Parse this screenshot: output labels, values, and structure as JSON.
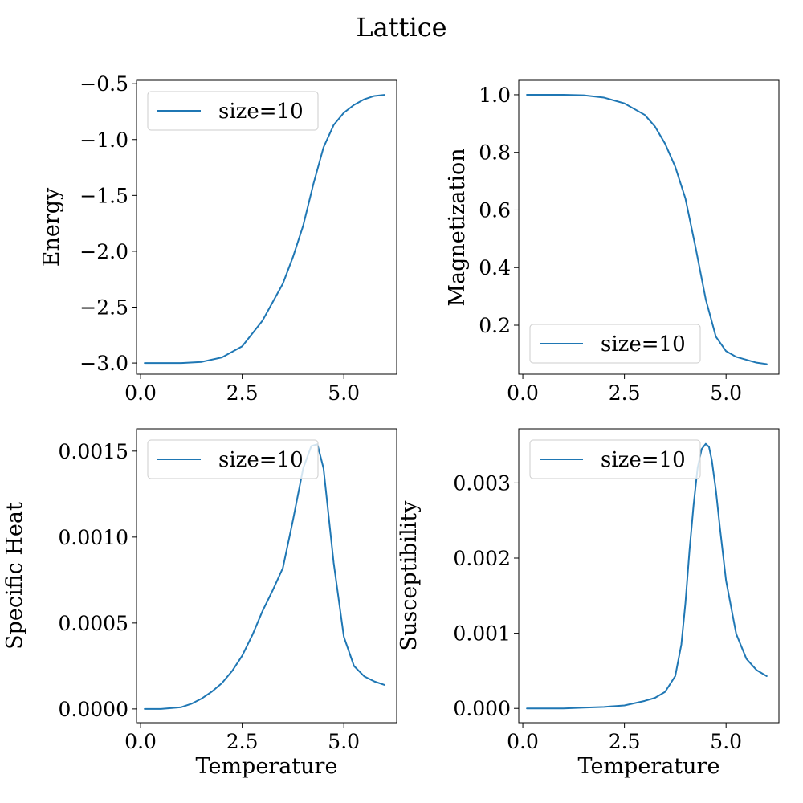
{
  "chart_data": [
    {
      "type": "line",
      "title": "Lattice",
      "panels": [
        {
          "ylabel": "Energy",
          "xlabel": "",
          "xlim": [
            -0.1,
            6.3
          ],
          "ylim": [
            -3.1,
            -0.47
          ],
          "xticks": [
            0.0,
            2.5,
            5.0
          ],
          "xtick_labels": [
            "0.0",
            "2.5",
            "5.0"
          ],
          "yticks": [
            -3.0,
            -2.5,
            -2.0,
            -1.5,
            -1.0,
            -0.5
          ],
          "ytick_labels": [
            "−3.0",
            "−2.5",
            "−2.0",
            "−1.5",
            "−1.0",
            "−0.5"
          ],
          "legend": "upper left",
          "series": [
            {
              "name": "size=10",
              "color": "#1f77b4",
              "x": [
                0.1,
                0.5,
                1.0,
                1.5,
                2.0,
                2.5,
                3.0,
                3.5,
                3.75,
                4.0,
                4.25,
                4.5,
                4.75,
                5.0,
                5.25,
                5.5,
                5.75,
                6.0
              ],
              "y": [
                -3.0,
                -3.0,
                -3.0,
                -2.99,
                -2.95,
                -2.85,
                -2.62,
                -2.29,
                -2.05,
                -1.77,
                -1.4,
                -1.07,
                -0.87,
                -0.76,
                -0.69,
                -0.64,
                -0.61,
                -0.6
              ]
            }
          ]
        },
        {
          "ylabel": "Magnetization",
          "xlabel": "",
          "xlim": [
            -0.1,
            6.3
          ],
          "ylim": [
            0.03,
            1.05
          ],
          "xticks": [
            0.0,
            2.5,
            5.0
          ],
          "xtick_labels": [
            "0.0",
            "2.5",
            "5.0"
          ],
          "yticks": [
            0.2,
            0.4,
            0.6,
            0.8,
            1.0
          ],
          "ytick_labels": [
            "0.2",
            "0.4",
            "0.6",
            "0.8",
            "1.0"
          ],
          "legend": "lower left",
          "series": [
            {
              "name": "size=10",
              "color": "#1f77b4",
              "x": [
                0.1,
                0.5,
                1.0,
                1.5,
                2.0,
                2.5,
                3.0,
                3.25,
                3.5,
                3.75,
                4.0,
                4.25,
                4.5,
                4.75,
                5.0,
                5.25,
                5.5,
                5.75,
                6.0
              ],
              "y": [
                1.0,
                1.0,
                1.0,
                0.998,
                0.99,
                0.97,
                0.93,
                0.89,
                0.83,
                0.75,
                0.64,
                0.47,
                0.29,
                0.16,
                0.11,
                0.09,
                0.08,
                0.07,
                0.065
              ]
            }
          ]
        },
        {
          "ylabel": "Specific Heat",
          "xlabel": "Temperature",
          "xlim": [
            -0.1,
            6.3
          ],
          "ylim": [
            -8e-05,
            0.00163
          ],
          "xticks": [
            0.0,
            2.5,
            5.0
          ],
          "xtick_labels": [
            "0.0",
            "2.5",
            "5.0"
          ],
          "yticks": [
            0.0,
            0.0005,
            0.001,
            0.0015
          ],
          "ytick_labels": [
            "0.0000",
            "0.0005",
            "0.0010",
            "0.0015"
          ],
          "legend": "upper left",
          "series": [
            {
              "name": "size=10",
              "color": "#1f77b4",
              "x": [
                0.1,
                0.5,
                1.0,
                1.25,
                1.5,
                1.75,
                2.0,
                2.25,
                2.5,
                2.75,
                3.0,
                3.25,
                3.5,
                3.75,
                4.0,
                4.2,
                4.35,
                4.5,
                4.75,
                5.0,
                5.25,
                5.5,
                5.75,
                6.0
              ],
              "y": [
                0.0,
                0.0,
                1e-05,
                3e-05,
                6e-05,
                0.0001,
                0.00015,
                0.00022,
                0.00031,
                0.00043,
                0.00057,
                0.00069,
                0.00082,
                0.0011,
                0.0014,
                0.00153,
                0.00154,
                0.0014,
                0.00085,
                0.00042,
                0.00025,
                0.00019,
                0.00016,
                0.00014
              ]
            }
          ]
        },
        {
          "ylabel": "Susceptibility",
          "xlabel": "Temperature",
          "xlim": [
            -0.1,
            6.3
          ],
          "ylim": [
            -0.00019,
            0.00372
          ],
          "xticks": [
            0.0,
            2.5,
            5.0
          ],
          "xtick_labels": [
            "0.0",
            "2.5",
            "5.0"
          ],
          "yticks": [
            0.0,
            0.001,
            0.002,
            0.003
          ],
          "ytick_labels": [
            "0.000",
            "0.001",
            "0.002",
            "0.003"
          ],
          "legend": "upper left",
          "series": [
            {
              "name": "size=10",
              "color": "#1f77b4",
              "x": [
                0.1,
                1.0,
                1.5,
                2.0,
                2.5,
                3.0,
                3.25,
                3.5,
                3.75,
                3.9,
                4.0,
                4.1,
                4.2,
                4.3,
                4.4,
                4.5,
                4.58,
                4.65,
                4.75,
                4.85,
                5.0,
                5.25,
                5.5,
                5.75,
                6.0
              ],
              "y": [
                0.0,
                0.0,
                1e-05,
                2e-05,
                4e-05,
                0.0001,
                0.00014,
                0.00022,
                0.00043,
                0.00085,
                0.0014,
                0.0021,
                0.0027,
                0.0032,
                0.00345,
                0.00352,
                0.00348,
                0.0033,
                0.0029,
                0.0024,
                0.0017,
                0.00099,
                0.00066,
                0.00051,
                0.00043
              ]
            }
          ]
        }
      ]
    }
  ]
}
